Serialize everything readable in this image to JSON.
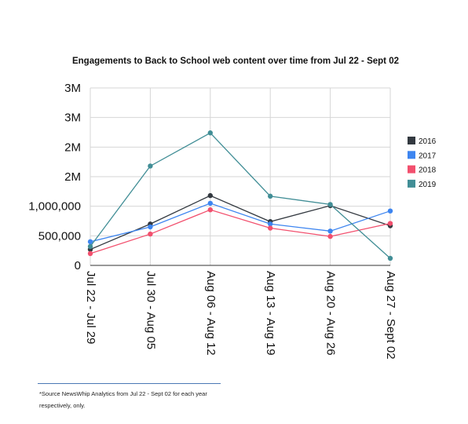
{
  "chart_data": {
    "type": "line",
    "title": "Engagements to Back to School web content over time from Jul 22 - Sept 02",
    "xlabel": "",
    "ylabel": "",
    "categories": [
      "Jul 22 - Jul 29",
      "Jul 30 - Aug 05",
      "Aug 06 - Aug 12",
      "Aug 13 - Aug 19",
      "Aug 20 - Aug 26",
      "Aug 27 - Sept 02"
    ],
    "ylim": [
      0,
      3000000
    ],
    "yticks": [
      {
        "value": 0,
        "label": "0"
      },
      {
        "value": 500000,
        "label": "500,000"
      },
      {
        "value": 1000000,
        "label": "1,000,000"
      },
      {
        "value": 1500000,
        "label": "2M"
      },
      {
        "value": 2000000,
        "label": "2M"
      },
      {
        "value": 2500000,
        "label": "3M"
      },
      {
        "value": 3000000,
        "label": "3M"
      }
    ],
    "grid": true,
    "legend_position": "right",
    "series": [
      {
        "name": "2016",
        "color": "#333940",
        "values": [
          270000,
          700000,
          1180000,
          740000,
          1010000,
          670000
        ]
      },
      {
        "name": "2017",
        "color": "#3d85f0",
        "values": [
          400000,
          650000,
          1050000,
          700000,
          580000,
          920000
        ]
      },
      {
        "name": "2018",
        "color": "#f2506e",
        "values": [
          200000,
          530000,
          940000,
          630000,
          490000,
          710000
        ]
      },
      {
        "name": "2019",
        "color": "#418e96",
        "values": [
          320000,
          1680000,
          2240000,
          1170000,
          1030000,
          120000
        ]
      }
    ]
  },
  "footnote": {
    "text": "*Source NewsWhip Analytics from Jul 22 - Sept 02  for each year respectively, only."
  }
}
